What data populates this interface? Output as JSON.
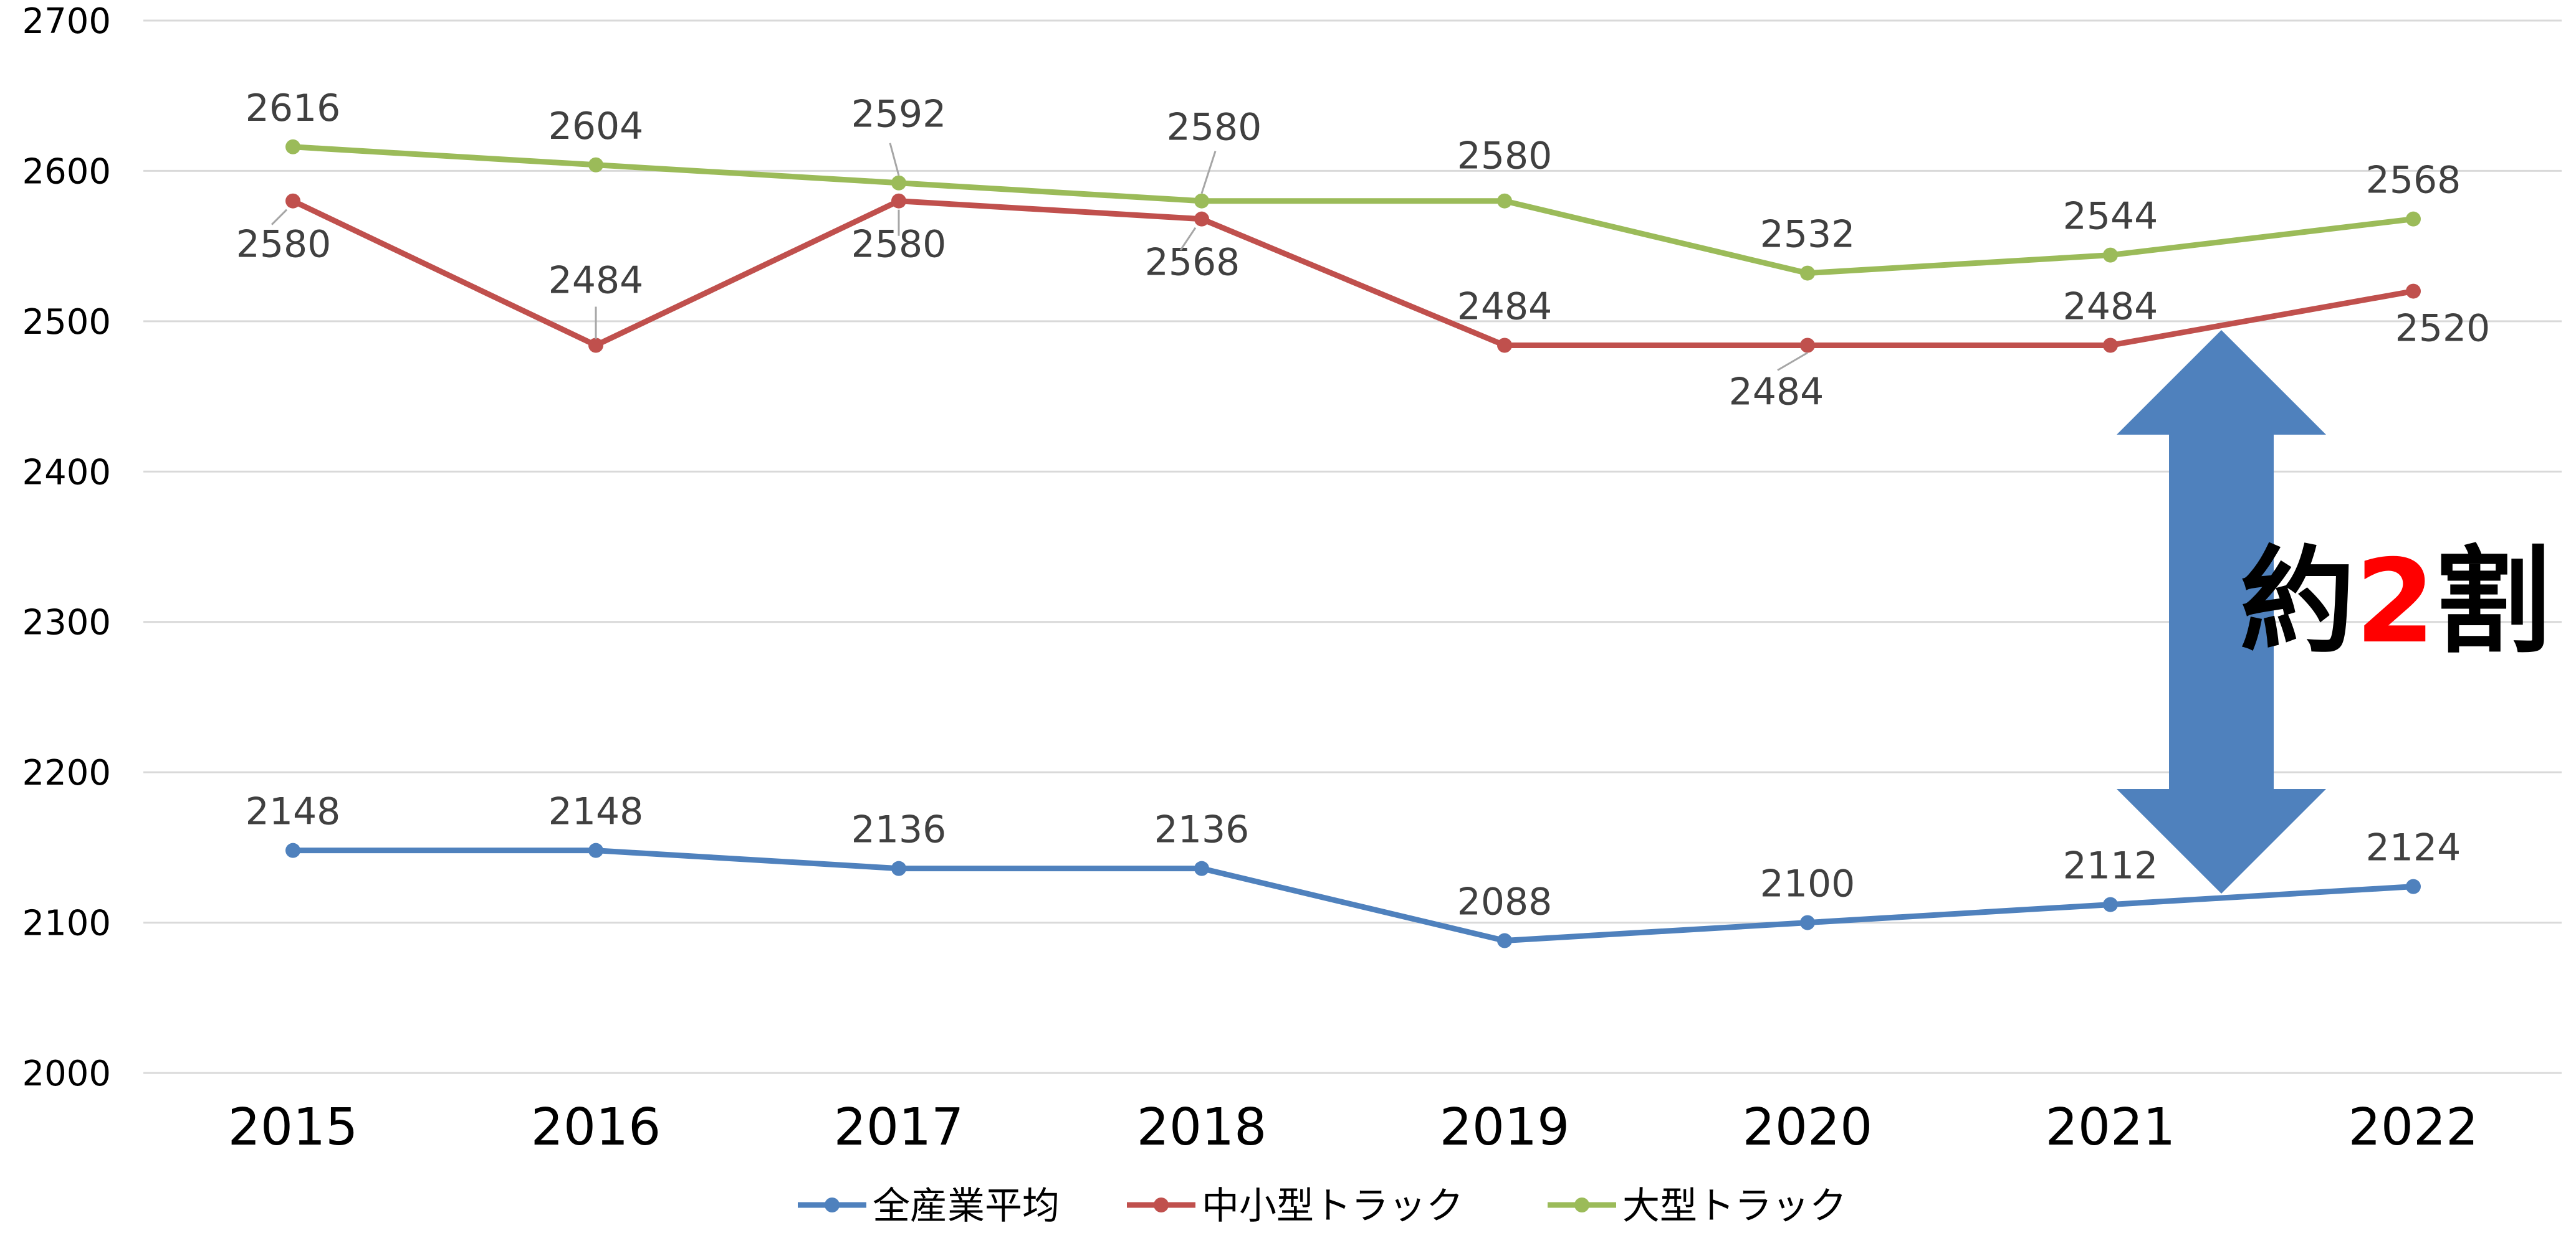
{
  "chart_data": {
    "type": "line",
    "categories": [
      "2015",
      "2016",
      "2017",
      "2018",
      "2019",
      "2020",
      "2021",
      "2022"
    ],
    "ylim": [
      2000,
      2700
    ],
    "yticks": [
      2000,
      2100,
      2200,
      2300,
      2400,
      2500,
      2600,
      2700
    ],
    "grid": true,
    "legend_position": "bottom",
    "series": [
      {
        "name": "全産業平均",
        "color": "#4f81bd",
        "label_position": "above",
        "values": [
          2148,
          2148,
          2136,
          2136,
          2088,
          2100,
          2112,
          2124
        ]
      },
      {
        "name": "中小型トラック",
        "color": "#c0504d",
        "label_position": "mixed",
        "values": [
          2580,
          2484,
          2580,
          2568,
          2484,
          2484,
          2484,
          2520
        ]
      },
      {
        "name": "大型トラック",
        "color": "#9bbb59",
        "label_position": "above",
        "values": [
          2616,
          2604,
          2592,
          2580,
          2580,
          2532,
          2544,
          2568
        ]
      }
    ],
    "annotation": {
      "arrow_color": "#4f81bd",
      "text_parts": [
        {
          "text": "約",
          "color": "#000000"
        },
        {
          "text": "2",
          "color": "#ff0000"
        },
        {
          "text": "割",
          "color": "#000000"
        }
      ]
    }
  }
}
